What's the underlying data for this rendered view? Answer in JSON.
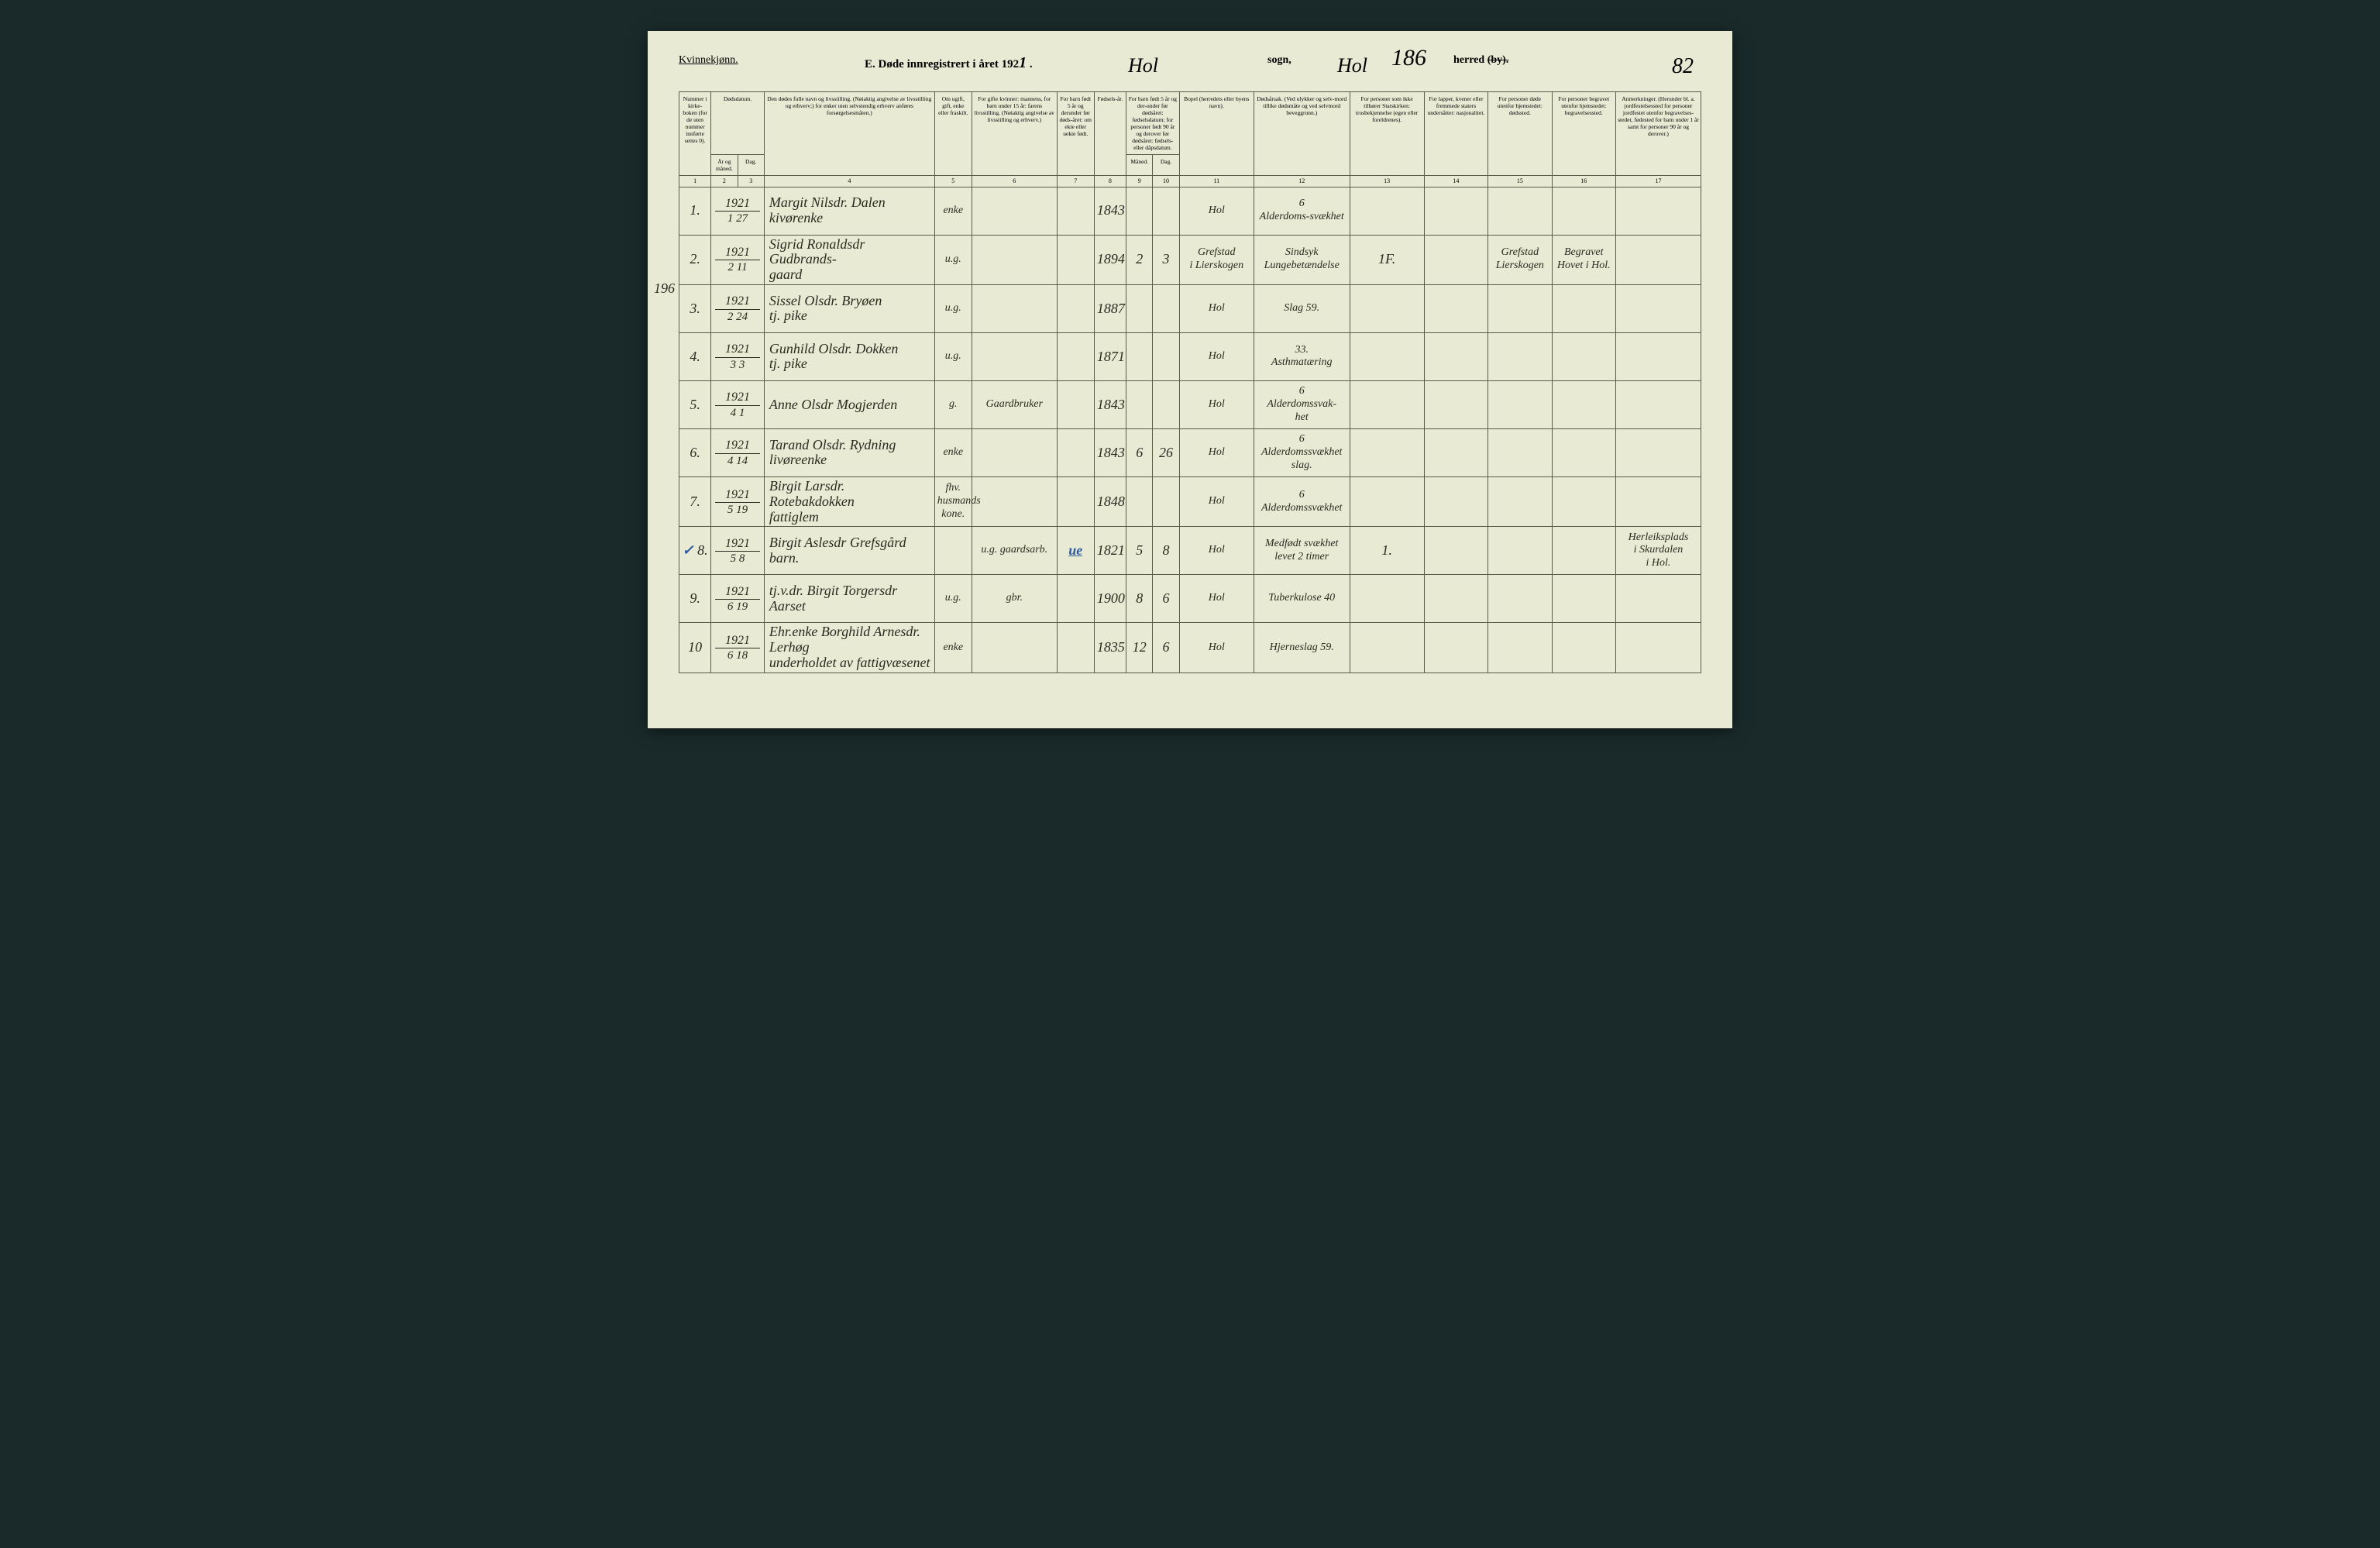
{
  "page": {
    "gender_label": "Kvinnekjønn.",
    "title_prefix": "E.  Døde innregistrert i året 192",
    "title_year_handwritten": "1",
    "title_suffix": " .",
    "sogn_handwritten": "Hol",
    "sogn_label": "sogn,",
    "herred_handwritten": "Hol",
    "page_number_186": "186",
    "herred_label": "herred",
    "herred_strike": "(by).",
    "page_number_right": "82",
    "left_margin_note": "196"
  },
  "columns": {
    "c1": "Nummer i kirke-boken (for de uten nummer innførte settes 0).",
    "c2_3_top": "Dødsdatum.",
    "c2": "År og måned.",
    "c3": "Dag.",
    "c4": "Den dødes fulle navn og livsstilling. (Nøiaktig angivelse av livsstilling og erhverv;) for enker uten selvstendig erhverv anføres forsørgelsesmåten.)",
    "c5": "Om ugift, gift, enke eller fraskilt.",
    "c6": "For gifte kvinner: mannens, for barn under 15 år: farens livsstilling. (Nøiaktig angivelse av livsstilling og erhverv.)",
    "c7": "For barn født 5 år og derunder før døds-året: om ekte eller uekte født.",
    "c8": "Fødsels-år.",
    "c9_10_top": "For barn født 5 år og der-under før dødsåret: fødselsdatum; for personer født 90 år og derover før dødsåret: fødsels- eller dåpsdatum.",
    "c9": "Måned.",
    "c10": "Dag.",
    "c11": "Bopel (herredets eller byens navn).",
    "c12": "Dødsårsak. (Ved ulykker og selv-mord tillike dødsmåte og ved selvmord beveggrunn.)",
    "c13": "For personer som ikke tilhører Statskirken: trosbekjennelse (egen eller foreldrenes).",
    "c14": "For lapper, kvener eller fremmede staters undersåtter: nasjonalitet.",
    "c15": "For personer døde utenfor hjemstedet: dødssted.",
    "c16": "For personer begravet utenfor hjemstedet: begravelsessted.",
    "c17": "Anmerkninger. (Herunder bl. a. jordfestelsessted for personer jordfestet utenfor begravelses-stedet, fødested for barn under 1 år samt for personer 90 år og derover.)"
  },
  "col_nums": [
    "1",
    "2",
    "3",
    "4",
    "5",
    "6",
    "7",
    "8",
    "9",
    "10",
    "11",
    "12",
    "13",
    "14",
    "15",
    "16",
    "17"
  ],
  "rows": [
    {
      "num": "1.",
      "year": "1921",
      "md": "1  27",
      "name": "Margit Nilsdr. Dalen  |  kivørenke",
      "marital": "enke",
      "parent": "",
      "c7": "",
      "birth": "1843",
      "c9": "",
      "c10": "",
      "bopel": "Hol",
      "cause": "6  |  Alderdoms-svækhet",
      "c13": "",
      "c14": "",
      "c15": "",
      "c16": "",
      "c17": ""
    },
    {
      "num": "2.",
      "year": "1921",
      "md": "2  11",
      "name": "Sigrid Ronaldsdr Gudbrands-  |  gaard",
      "marital": "u.g.",
      "parent": "",
      "c7": "",
      "birth": "1894",
      "c9": "2",
      "c10": "3",
      "bopel": "Grefstad  |  i Lierskogen",
      "cause": "Sindsyk  |  Lungebetændelse",
      "c13": "1F.",
      "c14": "",
      "c15": "Grefstad  |  Lierskogen",
      "c16": "Begravet  |  Hovet i Hol.",
      "c17": ""
    },
    {
      "num": "3.",
      "year": "1921",
      "md": "2  24",
      "name": "Sissel Olsdr. Bryøen  |  tj. pike",
      "marital": "u.g.",
      "parent": "",
      "c7": "",
      "birth": "1887",
      "c9": "",
      "c10": "",
      "bopel": "Hol",
      "cause": "Slag 59.",
      "c13": "",
      "c14": "",
      "c15": "",
      "c16": "",
      "c17": ""
    },
    {
      "num": "4.",
      "year": "1921",
      "md": "3  3",
      "name": "Gunhild Olsdr. Dokken  |  tj. pike",
      "marital": "u.g.",
      "parent": "",
      "c7": "",
      "birth": "1871",
      "c9": "",
      "c10": "",
      "bopel": "Hol",
      "cause": "33.  |  Asthmatæring",
      "c13": "",
      "c14": "",
      "c15": "",
      "c16": "",
      "c17": ""
    },
    {
      "num": "5.",
      "year": "1921",
      "md": "4  1",
      "name": "Anne Olsdr Mogjerden",
      "marital": "g.",
      "parent": "Gaardbruker",
      "c7": "",
      "birth": "1843",
      "c9": "",
      "c10": "",
      "bopel": "Hol",
      "cause": "6  |  Alderdomssvak-  |  het",
      "c13": "",
      "c14": "",
      "c15": "",
      "c16": "",
      "c17": ""
    },
    {
      "num": "6.",
      "year": "1921",
      "md": "4  14",
      "name": "Tarand Olsdr. Rydning  |  livøreenke",
      "marital": "enke",
      "parent": "",
      "c7": "",
      "birth": "1843",
      "c9": "6",
      "c10": "26",
      "bopel": "Hol",
      "cause": "6  |  Alderdomssvækhet  |  slag.",
      "c13": "",
      "c14": "",
      "c15": "",
      "c16": "",
      "c17": ""
    },
    {
      "num": "7.",
      "year": "1921",
      "md": "5  19",
      "name": "Birgit Larsdr. Rotebakdokken  |  fattiglem",
      "marital": "fhv. husmands kone.",
      "parent": "",
      "c7": "",
      "birth": "1848",
      "c9": "",
      "c10": "",
      "bopel": "Hol",
      "cause": "6  |  Alderdomssvækhet",
      "c13": "",
      "c14": "",
      "c15": "",
      "c16": "",
      "c17": ""
    },
    {
      "num": "8.",
      "year": "1921",
      "md": "5  8",
      "blue_check": "✓",
      "name": "Birgit Aslesdr Grefsgård  barn.",
      "marital": "",
      "parent": "u.g. gaardsarb.",
      "c7": "ue",
      "birth": "1821",
      "c9": "5",
      "c10": "8",
      "bopel": "Hol",
      "cause": "Medfødt svækhet  |  levet 2 timer",
      "c13": "1.",
      "c14": "",
      "c15": "",
      "c16": "",
      "c17": "Herleiksplads  |  i Skurdalen  |  i Hol."
    },
    {
      "num": "9.",
      "year": "1921",
      "md": "6  19",
      "name": "tj.v.dr. Birgit Torgersdr Aarset",
      "marital": "u.g.",
      "parent": "gbr.",
      "c7": "",
      "birth": "1900",
      "c9": "8",
      "c10": "6",
      "bopel": "Hol",
      "cause": "Tuberkulose 40",
      "c13": "",
      "c14": "",
      "c15": "",
      "c16": "",
      "c17": ""
    },
    {
      "num": "10",
      "year": "1921",
      "md": "6  18",
      "name": "Ehr.enke Borghild Arnesdr. Lerhøg  |  underholdet av fattigvæsenet",
      "marital": "enke",
      "parent": "",
      "c7": "",
      "birth": "1835",
      "c9": "12",
      "c10": "6",
      "bopel": "Hol",
      "cause": "Hjerneslag 59.",
      "c13": "",
      "c14": "",
      "c15": "",
      "c16": "",
      "c17": ""
    }
  ],
  "style": {
    "page_bg": "#e8ead4",
    "border_color": "#5a5a48",
    "ink_color": "#2a2a20",
    "blue_pencil": "#2e5a9e",
    "body_bg": "#1a2a2a"
  }
}
